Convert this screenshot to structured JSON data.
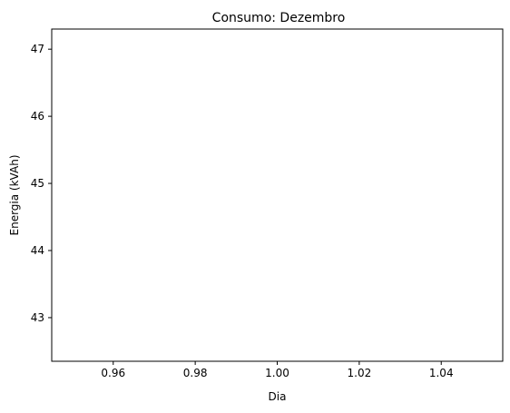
{
  "chart_data": {
    "type": "line",
    "title": "Consumo: Dezembro",
    "xlabel": "Dia",
    "ylabel": "Energia (kVAh)",
    "xlim": [
      0.945,
      1.055
    ],
    "ylim": [
      42.35,
      47.3
    ],
    "xticks": [
      0.96,
      0.98,
      1.0,
      1.02,
      1.04
    ],
    "xtick_labels": [
      "0.96",
      "0.98",
      "1.00",
      "1.02",
      "1.04"
    ],
    "yticks": [
      43,
      44,
      45,
      46,
      47
    ],
    "ytick_labels": [
      "43",
      "44",
      "45",
      "46",
      "47"
    ],
    "series": [
      {
        "x": [],
        "y": []
      }
    ],
    "grid": false,
    "colors": {
      "axes": "#000000",
      "background": "#ffffff"
    }
  }
}
